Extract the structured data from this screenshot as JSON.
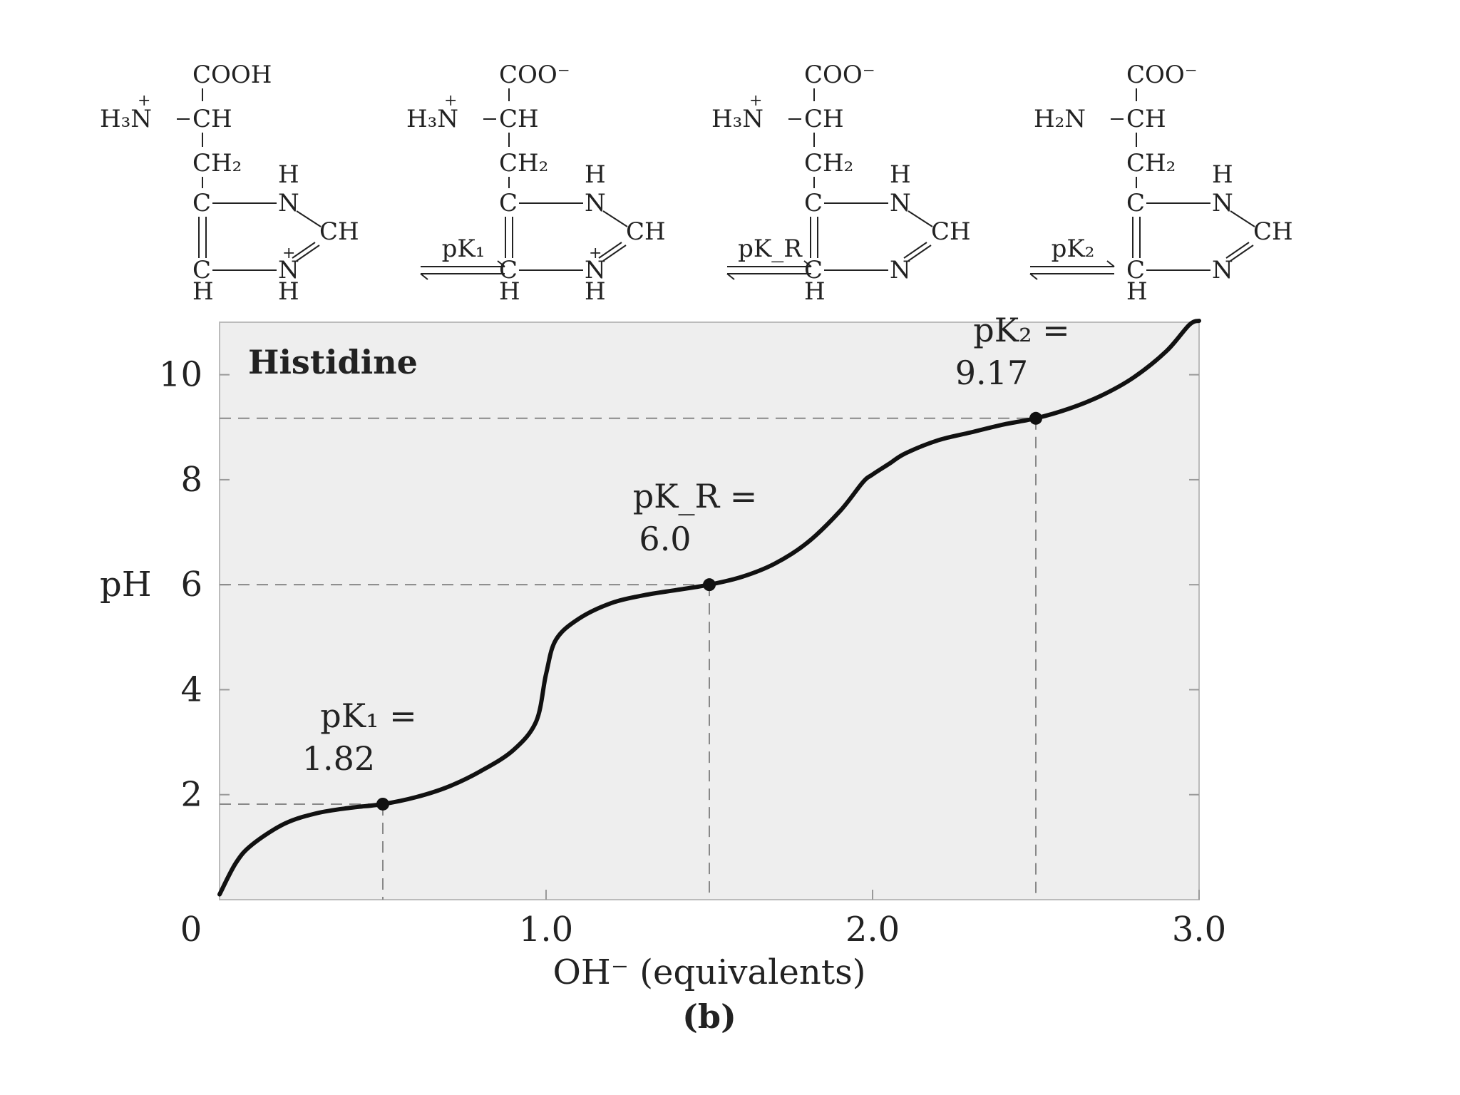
{
  "chart_data": {
    "type": "line",
    "title": "Histidine",
    "xlabel": "OH⁻ (equivalents)",
    "ylabel": "pH",
    "panel_label": "(b)",
    "xlim": [
      0,
      3.0
    ],
    "ylim": [
      0,
      11
    ],
    "x_ticks": [
      {
        "value": 1.0,
        "label": "1.0"
      },
      {
        "value": 2.0,
        "label": "2.0"
      },
      {
        "value": 3.0,
        "label": "3.0"
      }
    ],
    "y_ticks": [
      {
        "value": 2,
        "label": "2"
      },
      {
        "value": 4,
        "label": "4"
      },
      {
        "value": 6,
        "label": "6"
      },
      {
        "value": 8,
        "label": "8"
      },
      {
        "value": 10,
        "label": "10"
      }
    ],
    "origin_label": "0",
    "series": [
      {
        "x": [
          0.0,
          0.05,
          0.1,
          0.2,
          0.3,
          0.4,
          0.5,
          0.6,
          0.7,
          0.8,
          0.9,
          0.97,
          1.0,
          1.03,
          1.1,
          1.2,
          1.3,
          1.4,
          1.5,
          1.6,
          1.7,
          1.8,
          1.9,
          1.97,
          2.0,
          2.05,
          2.1,
          2.2,
          2.3,
          2.4,
          2.5,
          2.6,
          2.7,
          2.8,
          2.9,
          2.97,
          3.0
        ],
        "y": [
          0.1,
          0.7,
          1.05,
          1.45,
          1.65,
          1.75,
          1.82,
          1.95,
          2.15,
          2.45,
          2.85,
          3.4,
          4.3,
          4.95,
          5.35,
          5.65,
          5.8,
          5.9,
          6.0,
          6.15,
          6.4,
          6.8,
          7.4,
          7.95,
          8.1,
          8.3,
          8.5,
          8.75,
          8.9,
          9.05,
          9.17,
          9.35,
          9.6,
          9.95,
          10.45,
          10.95,
          11.1
        ]
      }
    ],
    "points": [
      {
        "x": 0.5,
        "y": 1.82,
        "label_line1": "pK₁ =",
        "label_line2": "1.82"
      },
      {
        "x": 1.5,
        "y": 6.0,
        "label_line1": "pK_R =",
        "label_line2": "6.0"
      },
      {
        "x": 2.5,
        "y": 9.17,
        "label_line1": "pK₂ =",
        "label_line2": "9.17"
      }
    ],
    "grid": false
  },
  "equilibria": [
    "pK₁",
    "pK_R",
    "pK₂"
  ],
  "structures": [
    {
      "carboxyl": "COOH",
      "amine": "H₃N",
      "amine_charge": "+",
      "ring_n_charge": "+",
      "ring_nh_bottom": "H"
    },
    {
      "carboxyl": "COO⁻",
      "amine": "H₃N",
      "amine_charge": "+",
      "ring_n_charge": "+",
      "ring_nh_bottom": "H"
    },
    {
      "carboxyl": "COO⁻",
      "amine": "H₃N",
      "amine_charge": "+",
      "ring_n_charge": "",
      "ring_nh_bottom": ""
    },
    {
      "carboxyl": "COO⁻",
      "amine": "H₂N",
      "amine_charge": "",
      "ring_n_charge": "",
      "ring_nh_bottom": ""
    }
  ],
  "labels": {
    "ch": "CH",
    "ch2": "CH₂",
    "c": "C",
    "n": "N",
    "h": "H"
  }
}
